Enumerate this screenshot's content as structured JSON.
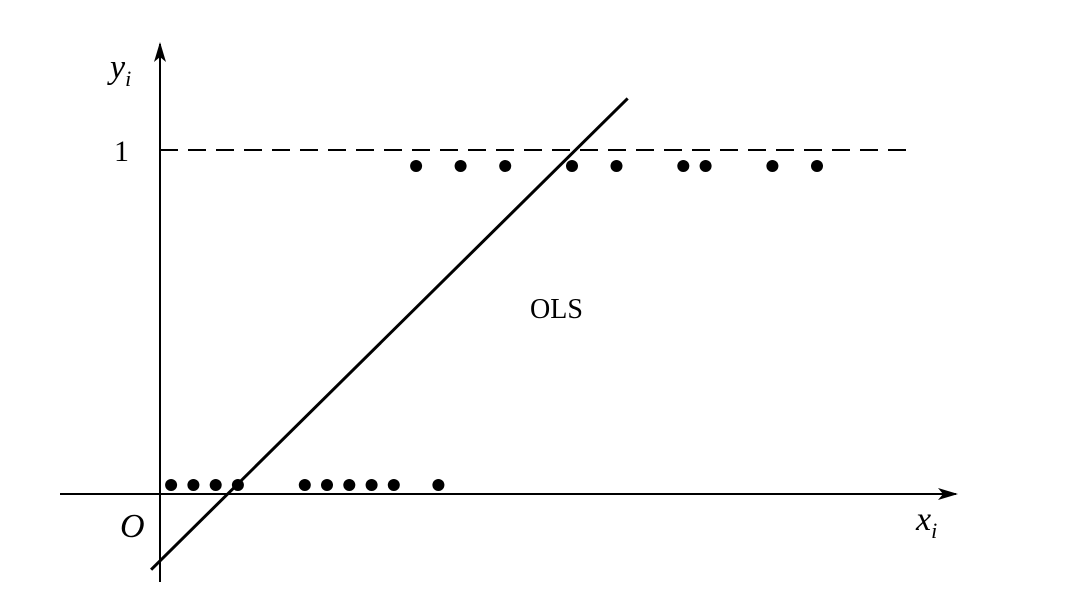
{
  "axes": {
    "origin_label": "O",
    "x_label_main": "x",
    "x_label_sub": "i",
    "y_label_main": "y",
    "y_label_sub": "i"
  },
  "reference_line": {
    "value": 1,
    "tick_label": "1",
    "style": "dashed"
  },
  "fit_line": {
    "label": "OLS",
    "x1": -0.4,
    "y1": -0.22,
    "x2": 21.0,
    "y2": 1.15
  },
  "points": [
    {
      "x": 0.5,
      "y": 0
    },
    {
      "x": 1.5,
      "y": 0
    },
    {
      "x": 2.5,
      "y": 0
    },
    {
      "x": 3.5,
      "y": 0
    },
    {
      "x": 6.5,
      "y": 0
    },
    {
      "x": 7.5,
      "y": 0
    },
    {
      "x": 8.5,
      "y": 0
    },
    {
      "x": 9.5,
      "y": 0
    },
    {
      "x": 10.5,
      "y": 0
    },
    {
      "x": 12.5,
      "y": 0
    },
    {
      "x": 11.5,
      "y": 1
    },
    {
      "x": 13.5,
      "y": 1
    },
    {
      "x": 15.5,
      "y": 1
    },
    {
      "x": 18.5,
      "y": 1
    },
    {
      "x": 20.5,
      "y": 1
    },
    {
      "x": 23.5,
      "y": 1
    },
    {
      "x": 24.5,
      "y": 1
    },
    {
      "x": 27.5,
      "y": 1
    },
    {
      "x": 29.5,
      "y": 1
    }
  ],
  "colors": {
    "ink": "#000000",
    "background": "#ffffff"
  }
}
